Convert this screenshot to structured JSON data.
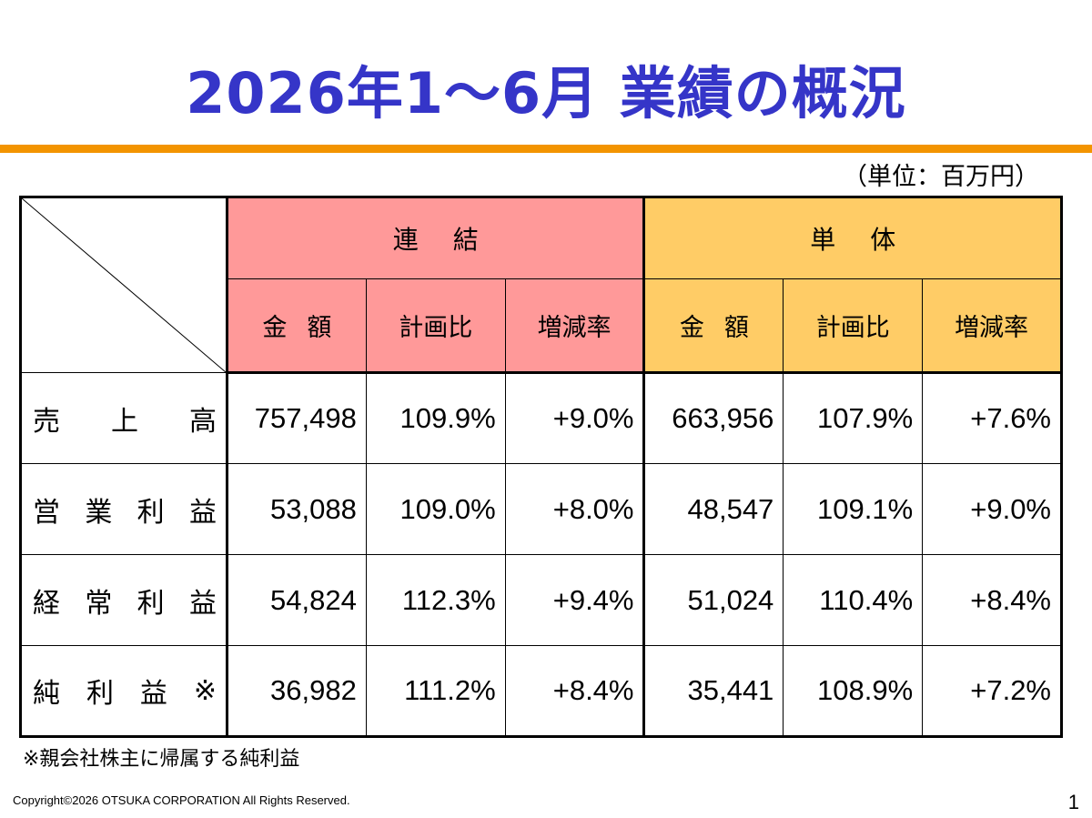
{
  "slide": {
    "title": "2026年1～6月 業績の概況",
    "unit_note": "（単位：百万円）",
    "footnote": "※親会社株主に帰属する純利益",
    "copyright": "Copyright©2026 OTSUKA CORPORATION All Rights Reserved.",
    "page_number": "1"
  },
  "colors": {
    "title": "#3535c8",
    "rule": "#f39400",
    "consolidated_header": "#ff9999",
    "single_header": "#ffcc66"
  },
  "table": {
    "groups": {
      "consolidated": "連結",
      "single": "単体"
    },
    "columns": {
      "amount": "金額",
      "plan_ratio": "計画比",
      "change_rate": "増減率"
    },
    "rows": [
      {
        "label": [
          "売",
          "上",
          "高"
        ],
        "consolidated": {
          "amount": "757,498",
          "plan_ratio": "109.9%",
          "change_rate": "+9.0%"
        },
        "single": {
          "amount": "663,956",
          "plan_ratio": "107.9%",
          "change_rate": "+7.6%"
        }
      },
      {
        "label": [
          "営",
          "業",
          "利",
          "益"
        ],
        "consolidated": {
          "amount": "53,088",
          "plan_ratio": "109.0%",
          "change_rate": "+8.0%"
        },
        "single": {
          "amount": "48,547",
          "plan_ratio": "109.1%",
          "change_rate": "+9.0%"
        }
      },
      {
        "label": [
          "経",
          "常",
          "利",
          "益"
        ],
        "consolidated": {
          "amount": "54,824",
          "plan_ratio": "112.3%",
          "change_rate": "+9.4%"
        },
        "single": {
          "amount": "51,024",
          "plan_ratio": "110.4%",
          "change_rate": "+8.4%"
        }
      },
      {
        "label": [
          "純",
          "利",
          "益",
          "※"
        ],
        "consolidated": {
          "amount": "36,982",
          "plan_ratio": "111.2%",
          "change_rate": "+8.4%"
        },
        "single": {
          "amount": "35,441",
          "plan_ratio": "108.9%",
          "change_rate": "+7.2%"
        }
      }
    ]
  }
}
